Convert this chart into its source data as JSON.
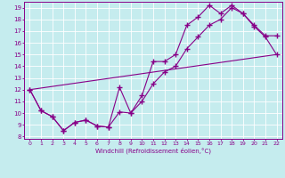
{
  "xlabel": "Windchill (Refroidissement éolien,°C)",
  "xlim": [
    -0.5,
    22.5
  ],
  "ylim": [
    7.8,
    19.5
  ],
  "xticks": [
    0,
    1,
    2,
    3,
    4,
    5,
    6,
    7,
    8,
    9,
    10,
    11,
    12,
    13,
    14,
    15,
    16,
    17,
    18,
    19,
    20,
    21,
    22
  ],
  "yticks": [
    8,
    9,
    10,
    11,
    12,
    13,
    14,
    15,
    16,
    17,
    18,
    19
  ],
  "background_color": "#c5ecee",
  "line_color": "#880088",
  "grid_color": "#ffffff",
  "line1_x": [
    0,
    1,
    2,
    3,
    4,
    5,
    6,
    7,
    8,
    9,
    10,
    11,
    12,
    13,
    14,
    15,
    16,
    17,
    18,
    19,
    20,
    21,
    22
  ],
  "line1_y": [
    12.0,
    10.2,
    9.7,
    8.5,
    9.2,
    9.4,
    8.9,
    8.8,
    12.2,
    10.0,
    11.5,
    14.4,
    14.4,
    15.0,
    17.5,
    18.2,
    19.2,
    18.5,
    19.2,
    18.5,
    17.5,
    16.6,
    16.6
  ],
  "line2_x": [
    0,
    1,
    2,
    3,
    4,
    5,
    6,
    7,
    8,
    9,
    10,
    11,
    12,
    13,
    14,
    15,
    16,
    17,
    18,
    19,
    20,
    21,
    22
  ],
  "line2_y": [
    12.0,
    10.2,
    9.7,
    8.5,
    9.2,
    9.4,
    8.9,
    8.8,
    10.1,
    10.0,
    11.0,
    12.5,
    13.5,
    14.0,
    15.5,
    16.5,
    17.5,
    18.0,
    19.0,
    18.5,
    17.4,
    16.5,
    15.0
  ],
  "line3_x": [
    0,
    22
  ],
  "line3_y": [
    12.0,
    15.0
  ]
}
